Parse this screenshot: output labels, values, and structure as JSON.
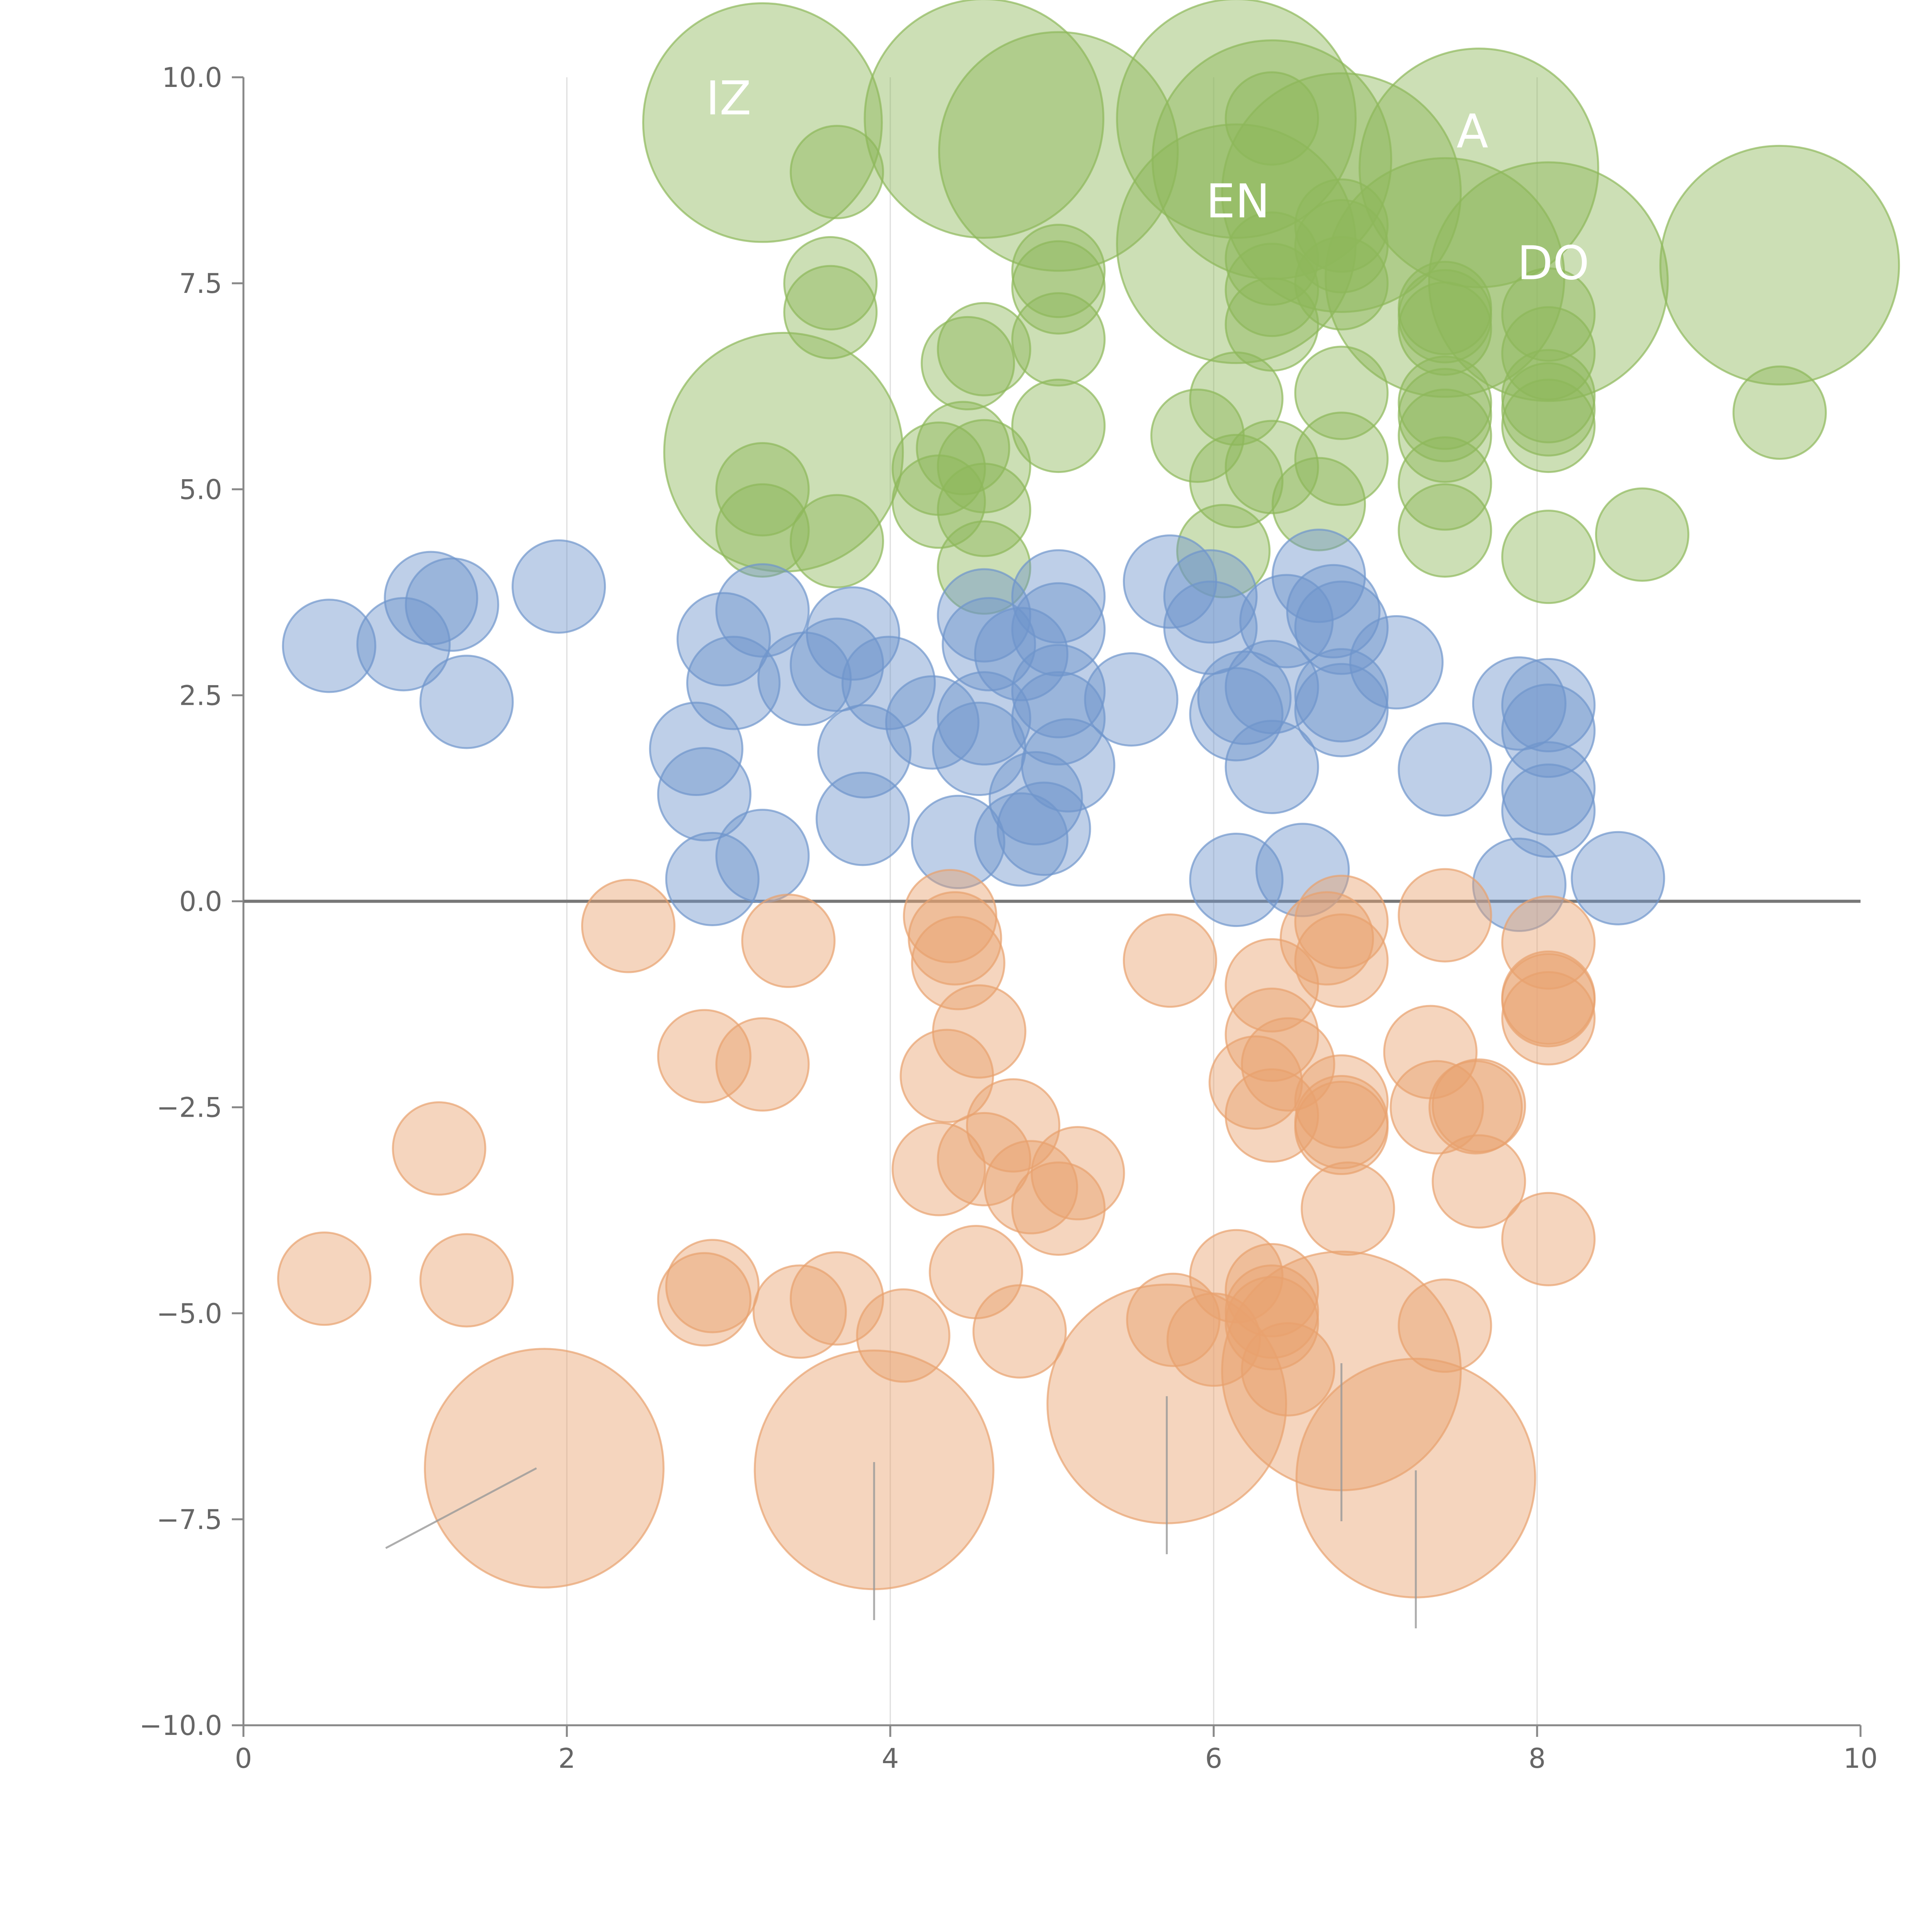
{
  "chart_data": {
    "type": "scatter",
    "title": "",
    "xlabel": "",
    "ylabel": "",
    "xlim": [
      0,
      10
    ],
    "ylim": [
      -10,
      10
    ],
    "grid": "vertical",
    "x_ticks": [
      "0",
      "2",
      "4",
      "6",
      "8",
      "10"
    ],
    "y_ticks": [
      "10.0",
      "7.5",
      "5.0",
      "2.5",
      "0.0",
      "−2.5",
      "−5.0",
      "−7.5",
      "−10.0"
    ],
    "x_tick_values": [
      0,
      2,
      4,
      6,
      8,
      10
    ],
    "y_tick_values": [
      10,
      7.5,
      5,
      2.5,
      0,
      -2.5,
      -5,
      -7.5,
      -10
    ],
    "zero_line": 0,
    "series": [
      {
        "name": "green",
        "color": "#8db85a",
        "points": [
          {
            "x": 3.21,
            "y": 9.45,
            "r": 6.2
          },
          {
            "x": 4.58,
            "y": 9.5,
            "r": 6.2
          },
          {
            "x": 5.04,
            "y": 9.1,
            "r": 6.2
          },
          {
            "x": 6.14,
            "y": 9.5,
            "r": 6.2
          },
          {
            "x": 6.36,
            "y": 9.0,
            "r": 6.2
          },
          {
            "x": 6.79,
            "y": 8.6,
            "r": 6.2
          },
          {
            "x": 7.64,
            "y": 8.9,
            "r": 6.2
          },
          {
            "x": 6.14,
            "y": 7.98,
            "r": 6.2
          },
          {
            "x": 7.43,
            "y": 7.57,
            "r": 6.2
          },
          {
            "x": 8.07,
            "y": 7.52,
            "r": 6.2
          },
          {
            "x": 9.5,
            "y": 7.72,
            "r": 6.2
          },
          {
            "x": 3.34,
            "y": 5.45,
            "r": 6.2
          },
          {
            "x": 6.36,
            "y": 9.5,
            "r": 2.4
          },
          {
            "x": 3.67,
            "y": 8.85,
            "r": 2.4
          },
          {
            "x": 6.79,
            "y": 8.2,
            "r": 2.4
          },
          {
            "x": 6.79,
            "y": 7.95,
            "r": 2.4
          },
          {
            "x": 6.36,
            "y": 7.8,
            "r": 2.4
          },
          {
            "x": 5.04,
            "y": 7.65,
            "r": 2.4
          },
          {
            "x": 3.63,
            "y": 7.5,
            "r": 2.4
          },
          {
            "x": 6.79,
            "y": 7.5,
            "r": 2.4
          },
          {
            "x": 5.04,
            "y": 7.45,
            "r": 2.4
          },
          {
            "x": 6.36,
            "y": 7.42,
            "r": 2.4
          },
          {
            "x": 7.43,
            "y": 7.2,
            "r": 2.4
          },
          {
            "x": 3.63,
            "y": 7.15,
            "r": 2.4
          },
          {
            "x": 8.07,
            "y": 7.12,
            "r": 2.4
          },
          {
            "x": 7.43,
            "y": 7.1,
            "r": 2.4
          },
          {
            "x": 6.36,
            "y": 7.0,
            "r": 2.4
          },
          {
            "x": 7.43,
            "y": 6.95,
            "r": 2.4
          },
          {
            "x": 5.04,
            "y": 6.82,
            "r": 2.4
          },
          {
            "x": 4.58,
            "y": 6.7,
            "r": 2.4
          },
          {
            "x": 8.07,
            "y": 6.65,
            "r": 2.4
          },
          {
            "x": 4.48,
            "y": 6.53,
            "r": 2.4
          },
          {
            "x": 6.79,
            "y": 6.17,
            "r": 2.4
          },
          {
            "x": 8.07,
            "y": 6.13,
            "r": 2.4
          },
          {
            "x": 6.14,
            "y": 6.1,
            "r": 2.4
          },
          {
            "x": 7.43,
            "y": 6.05,
            "r": 2.4
          },
          {
            "x": 8.07,
            "y": 5.97,
            "r": 2.4
          },
          {
            "x": 7.43,
            "y": 5.9,
            "r": 2.4
          },
          {
            "x": 9.5,
            "y": 5.93,
            "r": 2.4
          },
          {
            "x": 5.04,
            "y": 5.77,
            "r": 2.4
          },
          {
            "x": 8.07,
            "y": 5.77,
            "r": 2.4
          },
          {
            "x": 7.43,
            "y": 5.65,
            "r": 2.4
          },
          {
            "x": 5.9,
            "y": 5.65,
            "r": 2.4
          },
          {
            "x": 4.45,
            "y": 5.5,
            "r": 2.4
          },
          {
            "x": 6.79,
            "y": 5.37,
            "r": 2.4
          },
          {
            "x": 4.58,
            "y": 5.28,
            "r": 2.4
          },
          {
            "x": 6.36,
            "y": 5.27,
            "r": 2.4
          },
          {
            "x": 4.3,
            "y": 5.25,
            "r": 2.4
          },
          {
            "x": 6.14,
            "y": 5.1,
            "r": 2.4
          },
          {
            "x": 7.43,
            "y": 5.07,
            "r": 2.4
          },
          {
            "x": 3.21,
            "y": 5.0,
            "r": 2.4
          },
          {
            "x": 4.3,
            "y": 4.85,
            "r": 2.4
          },
          {
            "x": 6.65,
            "y": 4.82,
            "r": 2.4
          },
          {
            "x": 4.58,
            "y": 4.75,
            "r": 2.4
          },
          {
            "x": 3.21,
            "y": 4.5,
            "r": 2.4
          },
          {
            "x": 7.43,
            "y": 4.5,
            "r": 2.4
          },
          {
            "x": 8.65,
            "y": 4.45,
            "r": 2.4
          },
          {
            "x": 3.67,
            "y": 4.37,
            "r": 2.4
          },
          {
            "x": 6.06,
            "y": 4.25,
            "r": 2.4
          },
          {
            "x": 8.07,
            "y": 4.18,
            "r": 2.4
          },
          {
            "x": 4.58,
            "y": 4.05,
            "r": 2.4
          }
        ]
      },
      {
        "name": "blue",
        "color": "#6f95cc",
        "points": [
          {
            "x": 1.95,
            "y": 3.82,
            "r": 2.4
          },
          {
            "x": 5.73,
            "y": 3.88,
            "r": 2.4
          },
          {
            "x": 6.65,
            "y": 3.95,
            "r": 2.4
          },
          {
            "x": 1.16,
            "y": 3.68,
            "r": 2.4
          },
          {
            "x": 5.04,
            "y": 3.7,
            "r": 2.4
          },
          {
            "x": 5.98,
            "y": 3.7,
            "r": 2.4
          },
          {
            "x": 1.29,
            "y": 3.6,
            "r": 2.4
          },
          {
            "x": 6.74,
            "y": 3.52,
            "r": 2.4
          },
          {
            "x": 3.21,
            "y": 3.53,
            "r": 2.4
          },
          {
            "x": 4.58,
            "y": 3.47,
            "r": 2.4
          },
          {
            "x": 6.45,
            "y": 3.4,
            "r": 2.4
          },
          {
            "x": 5.04,
            "y": 3.3,
            "r": 2.4
          },
          {
            "x": 6.79,
            "y": 3.32,
            "r": 2.4
          },
          {
            "x": 5.98,
            "y": 3.32,
            "r": 2.4
          },
          {
            "x": 3.77,
            "y": 3.25,
            "r": 2.4
          },
          {
            "x": 2.97,
            "y": 3.18,
            "r": 2.4
          },
          {
            "x": 0.53,
            "y": 3.1,
            "r": 2.4
          },
          {
            "x": 0.99,
            "y": 3.12,
            "r": 2.4
          },
          {
            "x": 4.61,
            "y": 3.12,
            "r": 2.4
          },
          {
            "x": 4.81,
            "y": 3.0,
            "r": 2.4
          },
          {
            "x": 7.13,
            "y": 2.9,
            "r": 2.4
          },
          {
            "x": 3.67,
            "y": 2.87,
            "r": 2.4
          },
          {
            "x": 3.47,
            "y": 2.7,
            "r": 2.4
          },
          {
            "x": 3.99,
            "y": 2.65,
            "r": 2.4
          },
          {
            "x": 3.03,
            "y": 2.65,
            "r": 2.4
          },
          {
            "x": 6.36,
            "y": 2.6,
            "r": 2.4
          },
          {
            "x": 5.04,
            "y": 2.55,
            "r": 2.4
          },
          {
            "x": 6.79,
            "y": 2.5,
            "r": 2.4
          },
          {
            "x": 6.19,
            "y": 2.47,
            "r": 2.4
          },
          {
            "x": 5.49,
            "y": 2.45,
            "r": 2.4
          },
          {
            "x": 1.38,
            "y": 2.42,
            "r": 2.4
          },
          {
            "x": 7.89,
            "y": 2.4,
            "r": 2.4
          },
          {
            "x": 8.07,
            "y": 2.38,
            "r": 2.4
          },
          {
            "x": 6.79,
            "y": 2.32,
            "r": 2.4
          },
          {
            "x": 6.14,
            "y": 2.27,
            "r": 2.4
          },
          {
            "x": 4.58,
            "y": 2.22,
            "r": 2.4
          },
          {
            "x": 5.04,
            "y": 2.22,
            "r": 2.4
          },
          {
            "x": 4.26,
            "y": 2.17,
            "r": 2.4
          },
          {
            "x": 8.07,
            "y": 2.07,
            "r": 2.4
          },
          {
            "x": 2.8,
            "y": 1.85,
            "r": 2.4
          },
          {
            "x": 4.55,
            "y": 1.85,
            "r": 2.4
          },
          {
            "x": 3.84,
            "y": 1.82,
            "r": 2.4
          },
          {
            "x": 5.1,
            "y": 1.65,
            "r": 2.4
          },
          {
            "x": 6.36,
            "y": 1.63,
            "r": 2.4
          },
          {
            "x": 7.43,
            "y": 1.6,
            "r": 2.4
          },
          {
            "x": 8.07,
            "y": 1.37,
            "r": 2.4
          },
          {
            "x": 2.85,
            "y": 1.3,
            "r": 2.4
          },
          {
            "x": 4.9,
            "y": 1.25,
            "r": 2.4
          },
          {
            "x": 8.07,
            "y": 1.1,
            "r": 2.4
          },
          {
            "x": 3.83,
            "y": 1.0,
            "r": 2.4
          },
          {
            "x": 4.95,
            "y": 0.88,
            "r": 2.4
          },
          {
            "x": 4.81,
            "y": 0.75,
            "r": 2.4
          },
          {
            "x": 4.42,
            "y": 0.72,
            "r": 2.4
          },
          {
            "x": 3.21,
            "y": 0.55,
            "r": 2.4
          },
          {
            "x": 6.55,
            "y": 0.38,
            "r": 2.4
          },
          {
            "x": 8.5,
            "y": 0.28,
            "r": 2.4
          },
          {
            "x": 2.9,
            "y": 0.27,
            "r": 2.4
          },
          {
            "x": 6.14,
            "y": 0.26,
            "r": 2.4
          },
          {
            "x": 7.89,
            "y": 0.2,
            "r": 2.4
          }
        ]
      },
      {
        "name": "orange",
        "color": "#e8a16e",
        "points": [
          {
            "x": 1.86,
            "y": -6.88,
            "r": 6.2
          },
          {
            "x": 3.9,
            "y": -6.9,
            "r": 6.2
          },
          {
            "x": 5.71,
            "y": -6.1,
            "r": 6.2
          },
          {
            "x": 6.79,
            "y": -5.7,
            "r": 6.2
          },
          {
            "x": 7.25,
            "y": -7.0,
            "r": 6.2
          },
          {
            "x": 4.37,
            "y": -0.18,
            "r": 2.4
          },
          {
            "x": 7.43,
            "y": -0.17,
            "r": 2.4
          },
          {
            "x": 6.79,
            "y": -0.25,
            "r": 2.4
          },
          {
            "x": 2.38,
            "y": -0.3,
            "r": 2.4
          },
          {
            "x": 4.4,
            "y": -0.45,
            "r": 2.4
          },
          {
            "x": 6.7,
            "y": -0.45,
            "r": 2.4
          },
          {
            "x": 3.37,
            "y": -0.48,
            "r": 2.4
          },
          {
            "x": 8.07,
            "y": -0.5,
            "r": 2.4
          },
          {
            "x": 5.73,
            "y": -0.72,
            "r": 2.4
          },
          {
            "x": 6.79,
            "y": -0.72,
            "r": 2.4
          },
          {
            "x": 4.42,
            "y": -0.75,
            "r": 2.4
          },
          {
            "x": 6.36,
            "y": -1.02,
            "r": 2.4
          },
          {
            "x": 8.07,
            "y": -1.17,
            "r": 2.4
          },
          {
            "x": 8.07,
            "y": -1.2,
            "r": 2.4
          },
          {
            "x": 8.07,
            "y": -1.42,
            "r": 2.4
          },
          {
            "x": 4.55,
            "y": -1.58,
            "r": 2.4
          },
          {
            "x": 6.36,
            "y": -1.62,
            "r": 2.4
          },
          {
            "x": 7.34,
            "y": -1.83,
            "r": 2.4
          },
          {
            "x": 2.85,
            "y": -1.88,
            "r": 2.4
          },
          {
            "x": 3.21,
            "y": -1.98,
            "r": 2.4
          },
          {
            "x": 6.46,
            "y": -1.98,
            "r": 2.4
          },
          {
            "x": 4.35,
            "y": -2.12,
            "r": 2.4
          },
          {
            "x": 6.26,
            "y": -2.2,
            "r": 2.4
          },
          {
            "x": 6.79,
            "y": -2.43,
            "r": 2.4
          },
          {
            "x": 7.38,
            "y": -2.5,
            "r": 2.4
          },
          {
            "x": 7.64,
            "y": -2.48,
            "r": 2.4
          },
          {
            "x": 7.62,
            "y": -2.5,
            "r": 2.4
          },
          {
            "x": 6.36,
            "y": -2.6,
            "r": 2.4
          },
          {
            "x": 6.79,
            "y": -2.68,
            "r": 2.4
          },
          {
            "x": 4.76,
            "y": -2.72,
            "r": 2.4
          },
          {
            "x": 6.79,
            "y": -2.75,
            "r": 2.4
          },
          {
            "x": 1.21,
            "y": -3.0,
            "r": 2.4
          },
          {
            "x": 4.58,
            "y": -3.13,
            "r": 2.4
          },
          {
            "x": 4.3,
            "y": -3.25,
            "r": 2.4
          },
          {
            "x": 5.16,
            "y": -3.3,
            "r": 2.4
          },
          {
            "x": 7.64,
            "y": -3.4,
            "r": 2.4
          },
          {
            "x": 4.87,
            "y": -3.47,
            "r": 2.4
          },
          {
            "x": 5.04,
            "y": -3.73,
            "r": 2.4
          },
          {
            "x": 6.83,
            "y": -3.73,
            "r": 2.4
          },
          {
            "x": 8.07,
            "y": -4.1,
            "r": 2.4
          },
          {
            "x": 4.53,
            "y": -4.5,
            "r": 2.4
          },
          {
            "x": 6.14,
            "y": -4.55,
            "r": 2.4
          },
          {
            "x": 0.5,
            "y": -4.58,
            "r": 2.4
          },
          {
            "x": 1.38,
            "y": -4.6,
            "r": 2.4
          },
          {
            "x": 2.9,
            "y": -4.67,
            "r": 2.4
          },
          {
            "x": 6.36,
            "y": -4.72,
            "r": 2.4
          },
          {
            "x": 2.85,
            "y": -4.83,
            "r": 2.4
          },
          {
            "x": 3.67,
            "y": -4.82,
            "r": 2.4
          },
          {
            "x": 6.36,
            "y": -4.98,
            "r": 2.4
          },
          {
            "x": 3.44,
            "y": -4.98,
            "r": 2.4
          },
          {
            "x": 5.75,
            "y": -5.08,
            "r": 2.4
          },
          {
            "x": 7.43,
            "y": -5.15,
            "r": 2.4
          },
          {
            "x": 6.36,
            "y": -5.12,
            "r": 2.4
          },
          {
            "x": 4.8,
            "y": -5.22,
            "r": 2.4
          },
          {
            "x": 4.08,
            "y": -5.27,
            "r": 2.4
          },
          {
            "x": 6.0,
            "y": -5.32,
            "r": 2.4
          },
          {
            "x": 6.46,
            "y": -5.68,
            "r": 2.4
          }
        ]
      }
    ],
    "annotations": [
      {
        "text": "IZ",
        "x": 3.0,
        "y": 9.55
      },
      {
        "text": "EN",
        "x": 6.15,
        "y": 8.3
      },
      {
        "text": "DO",
        "x": 8.1,
        "y": 7.55
      },
      {
        "text": "A",
        "x": 7.6,
        "y": 9.15
      }
    ]
  }
}
